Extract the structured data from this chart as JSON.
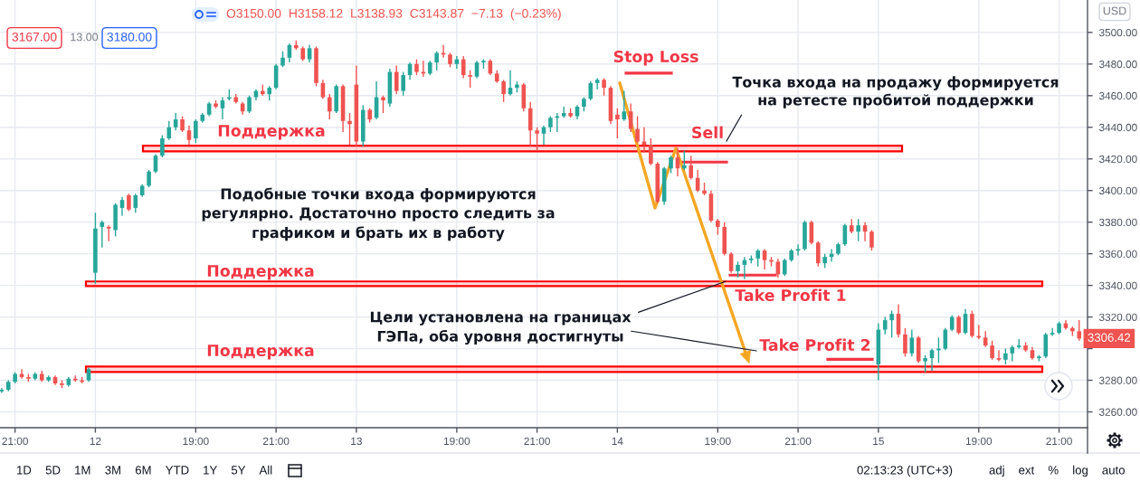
{
  "chart_data": {
    "type": "candlestick",
    "categories": [
      null,
      null,
      "21:00",
      null,
      null,
      null,
      null,
      null,
      null,
      null,
      null,
      null,
      null,
      null,
      "12",
      null,
      null,
      null,
      null,
      null,
      null,
      null,
      null,
      null,
      null,
      null,
      null,
      null,
      null,
      "19:00",
      null,
      null,
      null,
      null,
      null,
      null,
      null,
      null,
      null,
      null,
      null,
      "21:00",
      null,
      null,
      null,
      null,
      null,
      null,
      null,
      null,
      null,
      null,
      null,
      "13",
      null,
      null,
      null,
      null,
      null,
      null,
      null,
      null,
      null,
      null,
      null,
      null,
      null,
      null,
      "19:00",
      null,
      null,
      null,
      null,
      null,
      null,
      null,
      null,
      null,
      null,
      null,
      "21:00",
      null,
      null,
      null,
      null,
      null,
      null,
      null,
      null,
      null,
      null,
      null,
      "14",
      null,
      null,
      null,
      null,
      null,
      null,
      null,
      null,
      null,
      null,
      null,
      null,
      null,
      null,
      "19:00",
      null,
      null,
      null,
      null,
      null,
      null,
      null,
      null,
      null,
      null,
      null,
      "21:00",
      null,
      null,
      null,
      null,
      null,
      null,
      null,
      null,
      null,
      null,
      null,
      "15",
      null,
      null,
      null,
      null,
      null,
      null,
      null,
      null,
      null,
      null,
      null,
      null,
      null,
      null,
      "19:00",
      null,
      null,
      null,
      null,
      null,
      null,
      null,
      null,
      null,
      null,
      null,
      "21:00",
      null,
      null,
      null
    ],
    "ohlc": [
      [
        3273,
        3275,
        3272,
        3274
      ],
      [
        3274,
        3280,
        3273,
        3279
      ],
      [
        3279,
        3285,
        3278,
        3284
      ],
      [
        3284,
        3287,
        3281,
        3282
      ],
      [
        3282,
        3284,
        3279,
        3281
      ],
      [
        3281,
        3285,
        3280,
        3284
      ],
      [
        3284,
        3286,
        3279,
        3280
      ],
      [
        3280,
        3283,
        3279,
        3282
      ],
      [
        3282,
        3283,
        3277,
        3278
      ],
      [
        3278,
        3280,
        3275,
        3277
      ],
      [
        3277,
        3282,
        3276,
        3281
      ],
      [
        3281,
        3283,
        3279,
        3280
      ],
      [
        3280,
        3282,
        3278,
        3279
      ],
      [
        3280,
        3288,
        3279,
        3287
      ],
      [
        3348,
        3386,
        3341,
        3376
      ],
      [
        3377,
        3381,
        3364,
        3380
      ],
      [
        3377,
        3378,
        3368,
        3376
      ],
      [
        3375,
        3392,
        3371,
        3391
      ],
      [
        3389,
        3396,
        3384,
        3394
      ],
      [
        3397,
        3398,
        3387,
        3388
      ],
      [
        3389,
        3398,
        3386,
        3397
      ],
      [
        3397,
        3404,
        3396,
        3403
      ],
      [
        3403,
        3413,
        3402,
        3412
      ],
      [
        3412,
        3423,
        3411,
        3422
      ],
      [
        3422,
        3435,
        3421,
        3433
      ],
      [
        3433,
        3444,
        3432,
        3440
      ],
      [
        3440,
        3449,
        3438,
        3445
      ],
      [
        3445,
        3447,
        3437,
        3438
      ],
      [
        3438,
        3441,
        3429,
        3432
      ],
      [
        3433,
        3445,
        3430,
        3444
      ],
      [
        3444,
        3449,
        3443,
        3448
      ],
      [
        3448,
        3456,
        3447,
        3455
      ],
      [
        3455,
        3457,
        3452,
        3453
      ],
      [
        3452,
        3459,
        3445,
        3457
      ],
      [
        3458,
        3464,
        3457,
        3459
      ],
      [
        3459,
        3461,
        3455,
        3456
      ],
      [
        3455,
        3456,
        3448,
        3450
      ],
      [
        3450,
        3460,
        3449,
        3459
      ],
      [
        3459,
        3464,
        3457,
        3463
      ],
      [
        3463,
        3467,
        3460,
        3461
      ],
      [
        3461,
        3466,
        3457,
        3465
      ],
      [
        3465,
        3480,
        3464,
        3479
      ],
      [
        3479,
        3488,
        3478,
        3484
      ],
      [
        3484,
        3493,
        3481,
        3492
      ],
      [
        3492,
        3495,
        3489,
        3490
      ],
      [
        3490,
        3491,
        3482,
        3483
      ],
      [
        3483,
        3492,
        3481,
        3490
      ],
      [
        3490,
        3491,
        3466,
        3468
      ],
      [
        3468,
        3470,
        3458,
        3459
      ],
      [
        3459,
        3461,
        3445,
        3450
      ],
      [
        3450,
        3467,
        3449,
        3466
      ],
      [
        3466,
        3467,
        3437,
        3444
      ],
      [
        3444,
        3449,
        3429,
        3442
      ],
      [
        3467,
        3479,
        3428,
        3431
      ],
      [
        3431,
        3454,
        3428,
        3451
      ],
      [
        3451,
        3452,
        3443,
        3445
      ],
      [
        3446,
        3469,
        3445,
        3459
      ],
      [
        3459,
        3460,
        3449,
        3457
      ],
      [
        3455,
        3477,
        3453,
        3475
      ],
      [
        3475,
        3479,
        3461,
        3463
      ],
      [
        3463,
        3475,
        3460,
        3473
      ],
      [
        3473,
        3481,
        3470,
        3480
      ],
      [
        3480,
        3483,
        3473,
        3475
      ],
      [
        3475,
        3482,
        3472,
        3474
      ],
      [
        3474,
        3482,
        3473,
        3481
      ],
      [
        3481,
        3488,
        3476,
        3487
      ],
      [
        3487,
        3492,
        3484,
        3486
      ],
      [
        3486,
        3487,
        3478,
        3480
      ],
      [
        3480,
        3485,
        3477,
        3483
      ],
      [
        3483,
        3485,
        3471,
        3473
      ],
      [
        3473,
        3476,
        3465,
        3472
      ],
      [
        3472,
        3482,
        3471,
        3481
      ],
      [
        3481,
        3483,
        3477,
        3482
      ],
      [
        3482,
        3483,
        3473,
        3474
      ],
      [
        3474,
        3476,
        3468,
        3469
      ],
      [
        3469,
        3470,
        3456,
        3461
      ],
      [
        3461,
        3476,
        3460,
        3465
      ],
      [
        3465,
        3469,
        3462,
        3467
      ],
      [
        3467,
        3468,
        3450,
        3452
      ],
      [
        3452,
        3456,
        3428,
        3438
      ],
      [
        3438,
        3440,
        3425,
        3436
      ],
      [
        3436,
        3441,
        3429,
        3440
      ],
      [
        3440,
        3447,
        3437,
        3446
      ],
      [
        3446,
        3449,
        3437,
        3447
      ],
      [
        3447,
        3453,
        3446,
        3449
      ],
      [
        3449,
        3452,
        3446,
        3447
      ],
      [
        3447,
        3454,
        3445,
        3453
      ],
      [
        3453,
        3459,
        3450,
        3458
      ],
      [
        3458,
        3469,
        3457,
        3468
      ],
      [
        3468,
        3471,
        3464,
        3470
      ],
      [
        3470,
        3471,
        3460,
        3465
      ],
      [
        3465,
        3466,
        3442,
        3444
      ],
      [
        3448,
        3452,
        3433,
        3445
      ],
      [
        3445,
        3463,
        3444,
        3450
      ],
      [
        3450,
        3455,
        3437,
        3439
      ],
      [
        3439,
        3447,
        3430,
        3431
      ],
      [
        3431,
        3440,
        3424,
        3429
      ],
      [
        3429,
        3433,
        3416,
        3417
      ],
      [
        3417,
        3418,
        3392,
        3393
      ],
      [
        3393,
        3415,
        3391,
        3414
      ],
      [
        3414,
        3422,
        3411,
        3421
      ],
      [
        3421,
        3427,
        3409,
        3414
      ],
      [
        3414,
        3425,
        3413,
        3416
      ],
      [
        3416,
        3422,
        3407,
        3408
      ],
      [
        3408,
        3413,
        3399,
        3400
      ],
      [
        3400,
        3405,
        3397,
        3398
      ],
      [
        3398,
        3400,
        3380,
        3381
      ],
      [
        3381,
        3382,
        3372,
        3377
      ],
      [
        3377,
        3380,
        3359,
        3360
      ],
      [
        3360,
        3361,
        3348,
        3349
      ],
      [
        3349,
        3355,
        3345,
        3353
      ],
      [
        3353,
        3358,
        3344,
        3356
      ],
      [
        3356,
        3359,
        3354,
        3357
      ],
      [
        3357,
        3363,
        3352,
        3362
      ],
      [
        3362,
        3363,
        3350,
        3356
      ],
      [
        3356,
        3358,
        3352,
        3355
      ],
      [
        3355,
        3357,
        3345,
        3347
      ],
      [
        3347,
        3357,
        3346,
        3356
      ],
      [
        3356,
        3363,
        3355,
        3362
      ],
      [
        3362,
        3366,
        3359,
        3363
      ],
      [
        3363,
        3381,
        3362,
        3380
      ],
      [
        3380,
        3381,
        3366,
        3367
      ],
      [
        3367,
        3368,
        3352,
        3354
      ],
      [
        3354,
        3360,
        3351,
        3358
      ],
      [
        3358,
        3363,
        3355,
        3360
      ],
      [
        3360,
        3367,
        3359,
        3366
      ],
      [
        3366,
        3379,
        3365,
        3378
      ],
      [
        3378,
        3382,
        3373,
        3374
      ],
      [
        3374,
        3382,
        3368,
        3378
      ],
      [
        3378,
        3380,
        3368,
        3374
      ],
      [
        3374,
        3375,
        3362,
        3364
      ],
      [
        3290,
        3316,
        3280,
        3312
      ],
      [
        3312,
        3320,
        3309,
        3318
      ],
      [
        3318,
        3324,
        3307,
        3322
      ],
      [
        3322,
        3328,
        3307,
        3309
      ],
      [
        3309,
        3313,
        3295,
        3297
      ],
      [
        3297,
        3312,
        3295,
        3307
      ],
      [
        3307,
        3308,
        3291,
        3292
      ],
      [
        3292,
        3296,
        3285,
        3294
      ],
      [
        3294,
        3300,
        3286,
        3299
      ],
      [
        3299,
        3307,
        3291,
        3300
      ],
      [
        3300,
        3313,
        3299,
        3312
      ],
      [
        3312,
        3321,
        3311,
        3320
      ],
      [
        3320,
        3321,
        3309,
        3310
      ],
      [
        3310,
        3325,
        3309,
        3322
      ],
      [
        3322,
        3324,
        3307,
        3308
      ],
      [
        3308,
        3315,
        3306,
        3307
      ],
      [
        3307,
        3311,
        3301,
        3302
      ],
      [
        3302,
        3305,
        3293,
        3294
      ],
      [
        3294,
        3299,
        3292,
        3293
      ],
      [
        3293,
        3300,
        3290,
        3297
      ],
      [
        3297,
        3302,
        3292,
        3301
      ],
      [
        3301,
        3306,
        3300,
        3302
      ],
      [
        3302,
        3304,
        3298,
        3299
      ],
      [
        3299,
        3301,
        3293,
        3294
      ],
      [
        3294,
        3296,
        3292,
        3295
      ],
      [
        3295,
        3310,
        3294,
        3309
      ],
      [
        3309,
        3313,
        3308,
        3310
      ],
      [
        3310,
        3317,
        3309,
        3316
      ],
      [
        3316,
        3318,
        3312,
        3313
      ],
      [
        3313,
        3314,
        3308,
        3311
      ],
      [
        3311,
        3318,
        3305,
        3306.42
      ]
    ],
    "value_labels": [
      null,
      null,
      null,
      null,
      null,
      null,
      null,
      null,
      null,
      null,
      null,
      null,
      null,
      null,
      null,
      null,
      null,
      null,
      null,
      null,
      null,
      null,
      null,
      null,
      null,
      null,
      null,
      null,
      null,
      null,
      null,
      null,
      null,
      null,
      null,
      null,
      null,
      null,
      null,
      null,
      null,
      null,
      null,
      null,
      null,
      null,
      null,
      null,
      null,
      null,
      null,
      null,
      null,
      null,
      null,
      null,
      null,
      null,
      null,
      null,
      null,
      null,
      null,
      null,
      null,
      null,
      null,
      null,
      null,
      null,
      null,
      null,
      null,
      null,
      null,
      null,
      null,
      null,
      null,
      null,
      null,
      null,
      null,
      null,
      null,
      null,
      null,
      null,
      null,
      null,
      null,
      null,
      null,
      null,
      null,
      null,
      null,
      null,
      null,
      null,
      null,
      null,
      null,
      null,
      null,
      null,
      null,
      null,
      null,
      null,
      null,
      null,
      null,
      null,
      null,
      null,
      null,
      null,
      null,
      null,
      null,
      null,
      null,
      null,
      null,
      null,
      null,
      null,
      null,
      null,
      null,
      null,
      null,
      null,
      null,
      null,
      null,
      null,
      null,
      null,
      null,
      null,
      null,
      null,
      null,
      null,
      null,
      null,
      null,
      null,
      null,
      null,
      null,
      null,
      null,
      null,
      null,
      null,
      null,
      null,
      null,
      "3306.42"
    ],
    "ylim": [
      3250,
      3520.5
    ],
    "yticks": [
      {
        "value": 3260,
        "label": "3260.00"
      },
      {
        "value": 3280,
        "label": "3280.00"
      },
      {
        "value": 3300,
        "label": null
      },
      {
        "value": 3320,
        "label": "3320.00"
      },
      {
        "value": 3340,
        "label": "3340.00"
      },
      {
        "value": 3360,
        "label": "3360.00"
      },
      {
        "value": 3380,
        "label": "3380.00"
      },
      {
        "value": 3400,
        "label": "3400.00"
      },
      {
        "value": 3420,
        "label": "3420.00"
      },
      {
        "value": 3440,
        "label": "3440.00"
      },
      {
        "value": 3460,
        "label": "3460.00"
      },
      {
        "value": 3480,
        "label": "3480.00"
      },
      {
        "value": 3500,
        "label": "3500.00"
      }
    ],
    "grid": true,
    "bands": [
      {
        "axis": "y",
        "from": 3424.8,
        "to": 3428.4,
        "label": "Поддержка",
        "color": "#ff0000"
      },
      {
        "axis": "y",
        "from": 3339.6,
        "to": 3342.5,
        "label": "Поддержка",
        "color": "#ff0000"
      },
      {
        "axis": "y",
        "from": 3285.3,
        "to": 3288.7,
        "label": "Поддержка",
        "color": "#ff0000"
      }
    ],
    "ref_lines": [
      {
        "axis": "y",
        "value": 3474.2,
        "label": "Stop Loss",
        "color": "#f23645"
      },
      {
        "axis": "y",
        "value": 3418,
        "label": "Sell",
        "color": "#f23645"
      },
      {
        "axis": "y",
        "value": 3346.5,
        "label": "Take Profit 1",
        "color": "#f23645"
      },
      {
        "axis": "y",
        "value": 3293.3,
        "label": "Take Profit 2",
        "color": "#f23645"
      }
    ],
    "annotations": [
      "Точка входа на продажу формируется\nна ретесте пробитой поддержки",
      {
        "text": "Цели установлена на границах",
        "y": 3342.5
      },
      "ГЭПа, оба уровня достигнуты",
      "Подобные точки входа формируются\nрегулярно. Достаточно просто следить за\nграфиком и брать их в работу",
      "O3150.00 H3158.12 L3138.93 C3143.87 −7.13 (−0.23%)",
      "3167.00",
      "13.00",
      "3180.00",
      "USD",
      "1D 5D 1M 3M 6M YTD 1Y 5Y All",
      "02:13:23 (UTC+3)",
      "adj ext % log auto"
    ]
  }
}
